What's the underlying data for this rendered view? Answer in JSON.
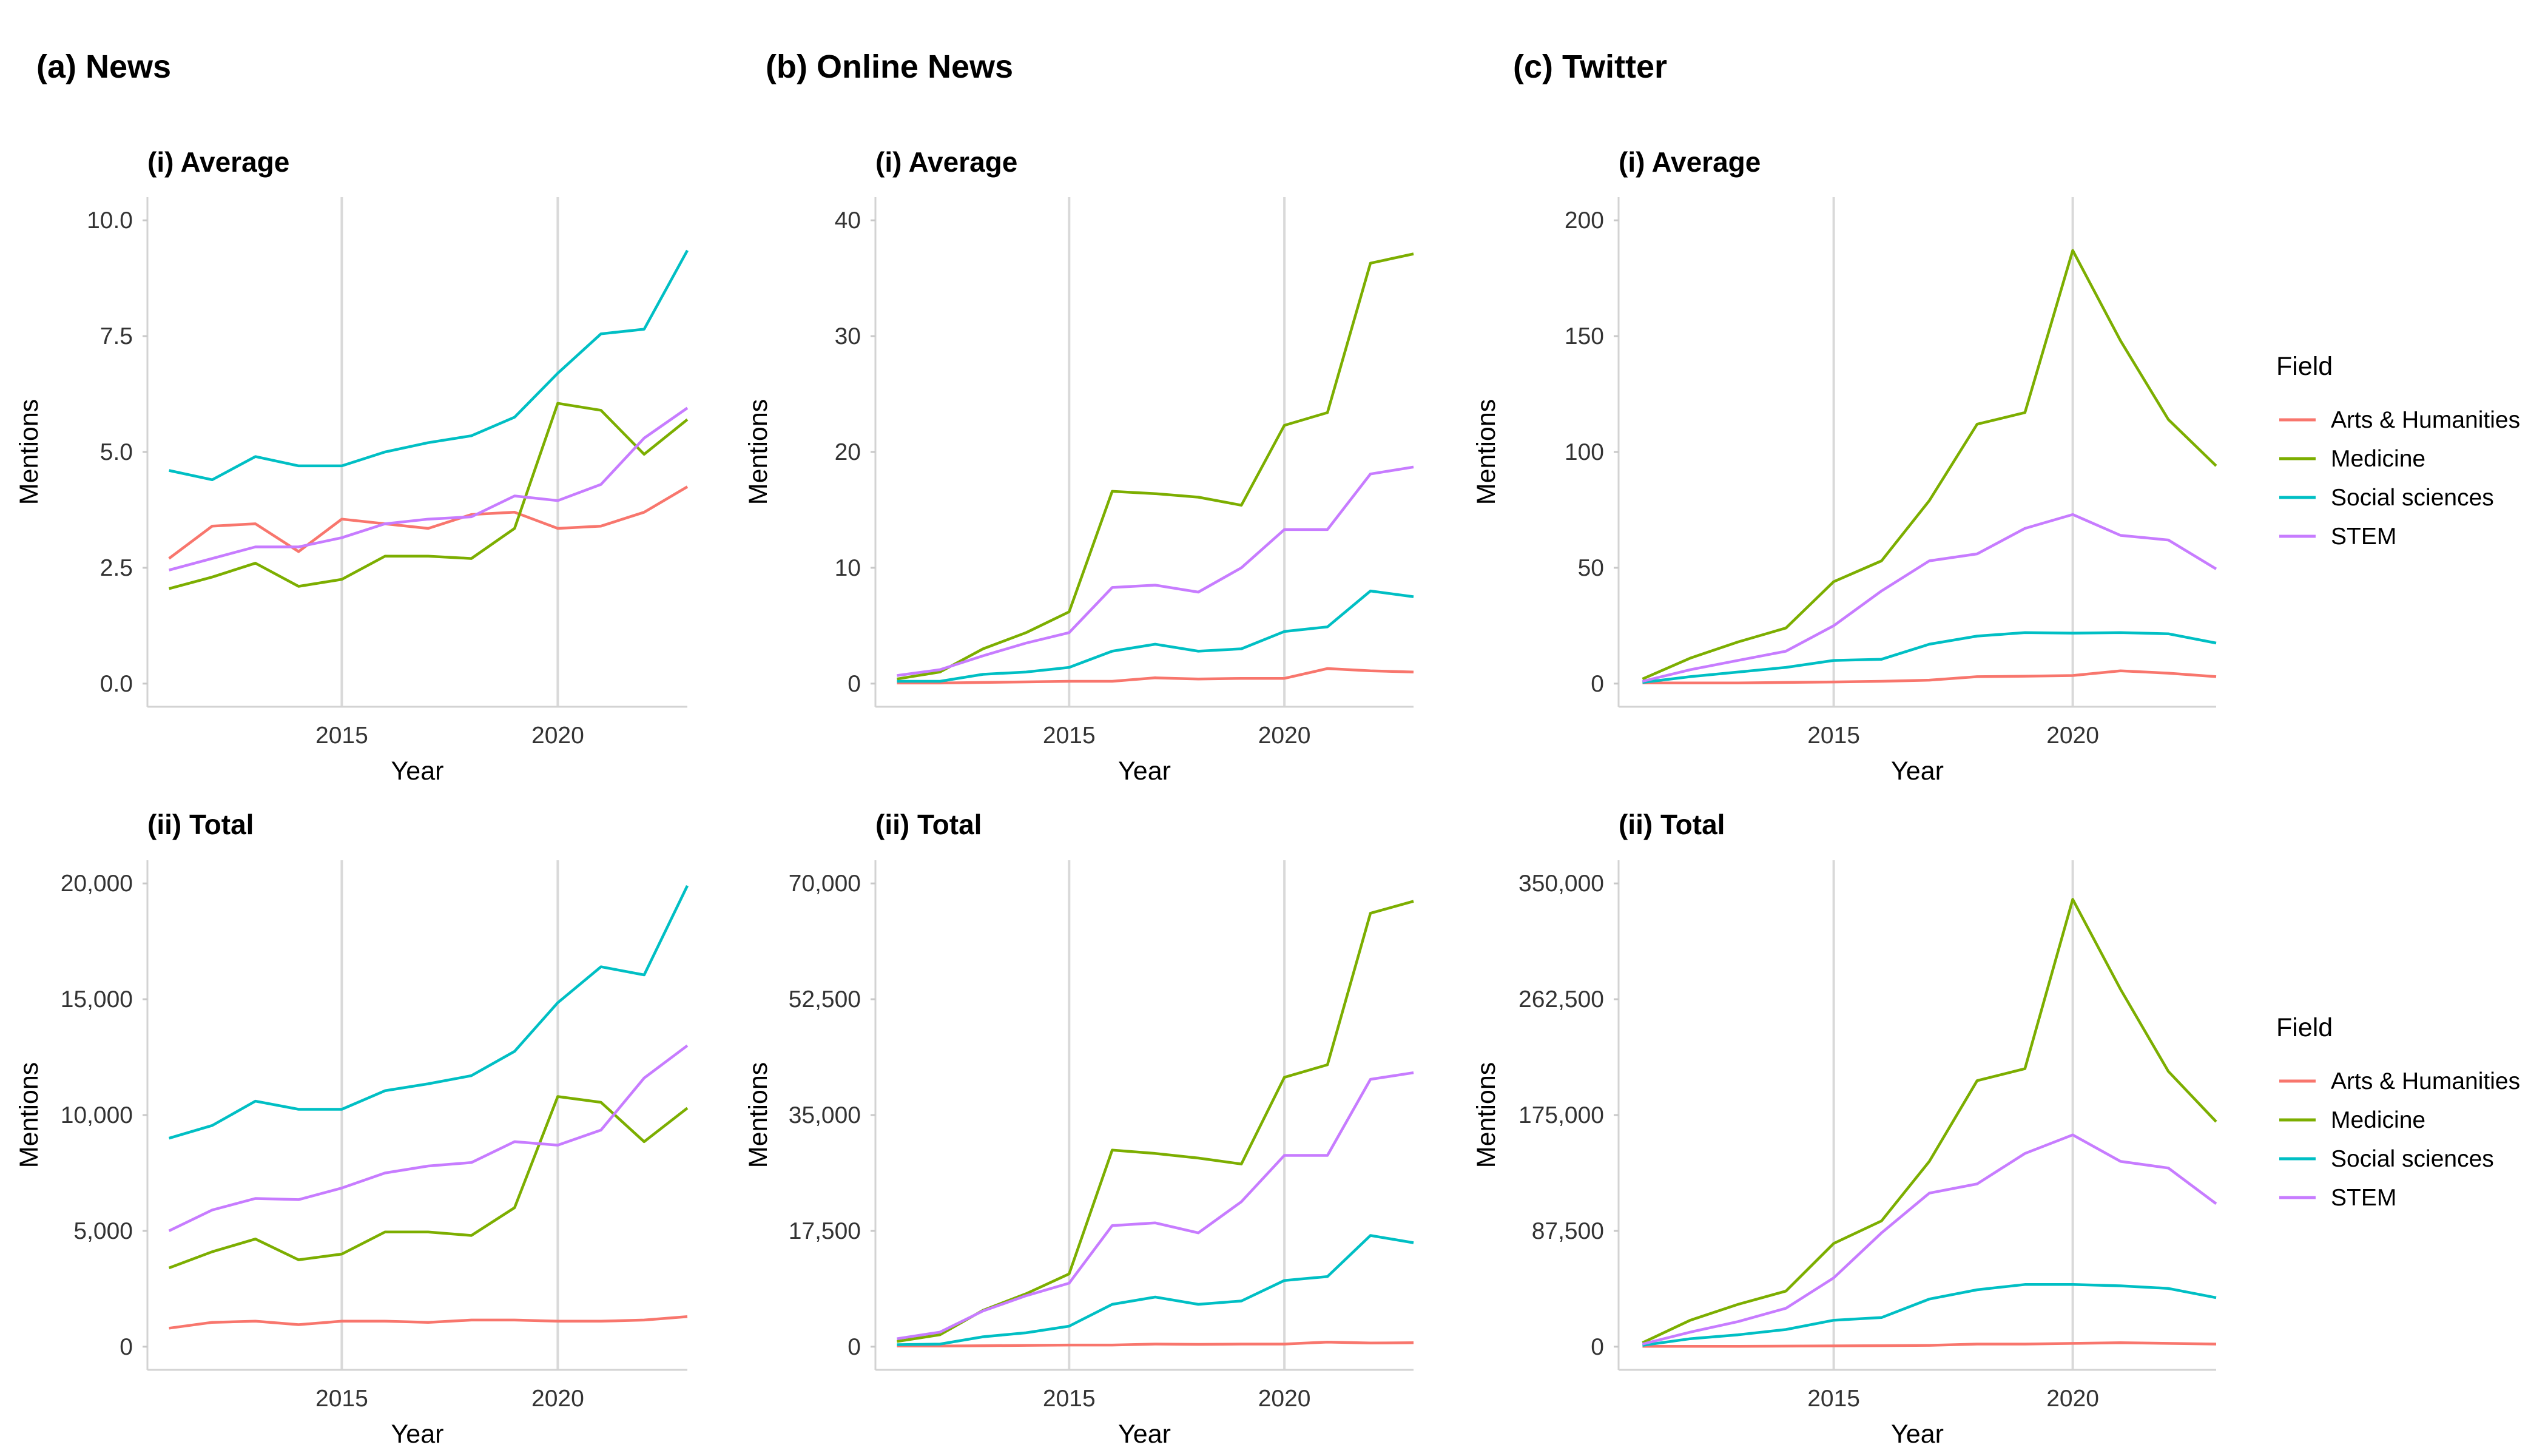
{
  "columns": [
    {
      "title": "(a) News"
    },
    {
      "title": "(b) Online News"
    },
    {
      "title": "(c) Twitter"
    }
  ],
  "legend": {
    "title": "Field",
    "entries": [
      {
        "name": "Arts & Humanities",
        "color": "#F8766D"
      },
      {
        "name": "Medicine",
        "color": "#7CAE00"
      },
      {
        "name": "Social sciences",
        "color": "#00BFC4"
      },
      {
        "name": "STEM",
        "color": "#C77CFF"
      }
    ]
  },
  "chart_data": [
    {
      "type": "line",
      "column": "(a) News",
      "title": "(i) Average",
      "xlabel": "Year",
      "ylabel": "Mentions",
      "x": [
        2011,
        2012,
        2013,
        2014,
        2015,
        2016,
        2017,
        2018,
        2019,
        2020,
        2021,
        2022,
        2023
      ],
      "xticks": [
        2015,
        2020
      ],
      "xlim": [
        2010.5,
        2023
      ],
      "ylim": [
        -0.5,
        10.5
      ],
      "yticks": [
        0,
        2.5,
        5,
        7.5,
        10
      ],
      "ytick_labels": [
        "0.0",
        "2.5",
        "5.0",
        "7.5",
        "10.0"
      ],
      "grid": "vertical major",
      "series": [
        {
          "name": "Arts & Humanities",
          "values": [
            2.7,
            3.4,
            3.45,
            2.85,
            3.55,
            3.45,
            3.35,
            3.65,
            3.7,
            3.35,
            3.4,
            3.7,
            4.25
          ]
        },
        {
          "name": "Medicine",
          "values": [
            2.05,
            2.3,
            2.6,
            2.1,
            2.25,
            2.75,
            2.75,
            2.7,
            3.35,
            6.05,
            5.9,
            4.95,
            5.7
          ]
        },
        {
          "name": "Social sciences",
          "values": [
            4.6,
            4.4,
            4.9,
            4.7,
            4.7,
            5.0,
            5.2,
            5.35,
            5.75,
            6.7,
            7.55,
            7.65,
            9.35
          ]
        },
        {
          "name": "STEM",
          "values": [
            2.45,
            2.7,
            2.95,
            2.95,
            3.15,
            3.45,
            3.55,
            3.6,
            4.05,
            3.95,
            4.3,
            5.3,
            5.95
          ]
        }
      ]
    },
    {
      "type": "line",
      "column": "(a) News",
      "title": "(ii) Total",
      "xlabel": "Year",
      "ylabel": "Mentions",
      "x": [
        2011,
        2012,
        2013,
        2014,
        2015,
        2016,
        2017,
        2018,
        2019,
        2020,
        2021,
        2022,
        2023
      ],
      "xticks": [
        2015,
        2020
      ],
      "xlim": [
        2010.5,
        2023
      ],
      "ylim": [
        -1000,
        21000
      ],
      "yticks": [
        0,
        5000,
        10000,
        15000,
        20000
      ],
      "ytick_labels": [
        "0",
        "5,000",
        "10,000",
        "15,000",
        "20,000"
      ],
      "grid": "vertical major",
      "series": [
        {
          "name": "Arts & Humanities",
          "values": [
            800,
            1050,
            1100,
            950,
            1100,
            1100,
            1050,
            1150,
            1150,
            1100,
            1100,
            1150,
            1300
          ]
        },
        {
          "name": "Medicine",
          "values": [
            3400,
            4100,
            4650,
            3750,
            4000,
            4950,
            4950,
            4800,
            6000,
            10800,
            10550,
            8850,
            10300
          ]
        },
        {
          "name": "Social sciences",
          "values": [
            9000,
            9550,
            10600,
            10250,
            10250,
            11050,
            11350,
            11700,
            12750,
            14850,
            16400,
            16050,
            19900
          ]
        },
        {
          "name": "STEM",
          "values": [
            5000,
            5900,
            6400,
            6350,
            6850,
            7500,
            7800,
            7950,
            8850,
            8700,
            9350,
            11600,
            13000
          ]
        }
      ]
    },
    {
      "type": "line",
      "column": "(b) Online News",
      "title": "(i) Average",
      "xlabel": "Year",
      "ylabel": "Mentions",
      "x": [
        2011,
        2012,
        2013,
        2014,
        2015,
        2016,
        2017,
        2018,
        2019,
        2020,
        2021,
        2022,
        2023
      ],
      "xticks": [
        2015,
        2020
      ],
      "xlim": [
        2010.5,
        2023
      ],
      "ylim": [
        -2,
        42
      ],
      "yticks": [
        0,
        10,
        20,
        30,
        40
      ],
      "ytick_labels": [
        "0",
        "10",
        "20",
        "30",
        "40"
      ],
      "grid": "vertical major",
      "series": [
        {
          "name": "Arts & Humanities",
          "values": [
            0.05,
            0.05,
            0.1,
            0.15,
            0.2,
            0.2,
            0.5,
            0.4,
            0.45,
            0.45,
            1.3,
            1.1,
            1.0
          ]
        },
        {
          "name": "Medicine",
          "values": [
            0.4,
            1.0,
            3.0,
            4.4,
            6.2,
            16.6,
            16.4,
            16.1,
            15.4,
            22.3,
            23.4,
            36.3,
            37.1
          ]
        },
        {
          "name": "Social sciences",
          "values": [
            0.2,
            0.2,
            0.8,
            1.0,
            1.4,
            2.8,
            3.4,
            2.8,
            3.0,
            4.5,
            4.9,
            8.0,
            7.5
          ]
        },
        {
          "name": "STEM",
          "values": [
            0.7,
            1.2,
            2.4,
            3.5,
            4.4,
            8.3,
            8.5,
            7.9,
            10.0,
            13.3,
            13.3,
            18.1,
            18.7
          ]
        }
      ]
    },
    {
      "type": "line",
      "column": "(b) Online News",
      "title": "(ii) Total",
      "xlabel": "Year",
      "ylabel": "Mentions",
      "x": [
        2011,
        2012,
        2013,
        2014,
        2015,
        2016,
        2017,
        2018,
        2019,
        2020,
        2021,
        2022,
        2023
      ],
      "xticks": [
        2015,
        2020
      ],
      "xlim": [
        2010.5,
        2023
      ],
      "ylim": [
        -3500,
        73500
      ],
      "yticks": [
        0,
        17500,
        35000,
        52500,
        70000
      ],
      "ytick_labels": [
        "0",
        "17,500",
        "35,000",
        "52,500",
        "70,000"
      ],
      "grid": "vertical major",
      "series": [
        {
          "name": "Arts & Humanities",
          "values": [
            100,
            100,
            150,
            200,
            250,
            250,
            400,
            350,
            400,
            400,
            700,
            550,
            600
          ]
        },
        {
          "name": "Medicine",
          "values": [
            800,
            1800,
            5500,
            8000,
            11000,
            29700,
            29200,
            28500,
            27600,
            40700,
            42600,
            65500,
            67300
          ]
        },
        {
          "name": "Social sciences",
          "values": [
            300,
            400,
            1500,
            2100,
            3100,
            6400,
            7500,
            6400,
            6900,
            10000,
            10600,
            16800,
            15700
          ]
        },
        {
          "name": "STEM",
          "values": [
            1200,
            2200,
            5400,
            7700,
            9600,
            18300,
            18700,
            17200,
            21900,
            28900,
            28900,
            40400,
            41400
          ]
        }
      ]
    },
    {
      "type": "line",
      "column": "(c) Twitter",
      "title": "(i) Average",
      "xlabel": "Year",
      "ylabel": "Mentions",
      "x": [
        2011,
        2012,
        2013,
        2014,
        2015,
        2016,
        2017,
        2018,
        2019,
        2020,
        2021,
        2022,
        2023
      ],
      "xticks": [
        2015,
        2020
      ],
      "xlim": [
        2010.5,
        2023
      ],
      "ylim": [
        -10,
        210
      ],
      "yticks": [
        0,
        50,
        100,
        150,
        200
      ],
      "ytick_labels": [
        "0",
        "50",
        "100",
        "150",
        "200"
      ],
      "grid": "vertical major",
      "series": [
        {
          "name": "Arts & Humanities",
          "values": [
            0.3,
            0.3,
            0.3,
            0.5,
            0.7,
            1.0,
            1.5,
            3.0,
            3.2,
            3.5,
            5.5,
            4.5,
            3.0
          ]
        },
        {
          "name": "Medicine",
          "values": [
            2,
            11,
            18,
            24,
            44,
            53,
            79,
            112,
            117,
            187,
            148,
            114,
            94
          ]
        },
        {
          "name": "Social sciences",
          "values": [
            0.5,
            3.0,
            5.0,
            7.0,
            10,
            10.5,
            17,
            20.5,
            22,
            21.8,
            22,
            21.5,
            17.5
          ]
        },
        {
          "name": "STEM",
          "values": [
            1,
            6,
            10,
            14,
            25,
            40,
            53,
            56,
            67,
            73,
            64,
            62,
            49.5
          ]
        }
      ]
    },
    {
      "type": "line",
      "column": "(c) Twitter",
      "title": "(ii) Total",
      "xlabel": "Year",
      "ylabel": "Mentions",
      "x": [
        2011,
        2012,
        2013,
        2014,
        2015,
        2016,
        2017,
        2018,
        2019,
        2020,
        2021,
        2022,
        2023
      ],
      "xticks": [
        2015,
        2020
      ],
      "xlim": [
        2010.5,
        2023
      ],
      "ylim": [
        -17500,
        367500
      ],
      "yticks": [
        0,
        87500,
        175000,
        262500,
        350000
      ],
      "ytick_labels": [
        "0",
        "87,500",
        "175,000",
        "262,500",
        "350,000"
      ],
      "grid": "vertical major",
      "series": [
        {
          "name": "Arts & Humanities",
          "values": [
            300,
            300,
            300,
            400,
            600,
            800,
            1000,
            2000,
            2000,
            2500,
            3000,
            2500,
            2000
          ]
        },
        {
          "name": "Medicine",
          "values": [
            3000,
            20000,
            32000,
            42000,
            78000,
            95000,
            140000,
            201000,
            210000,
            338000,
            270000,
            208000,
            170000
          ]
        },
        {
          "name": "Social sciences",
          "values": [
            1000,
            6000,
            9000,
            13000,
            20000,
            22000,
            36000,
            43000,
            47000,
            47000,
            46000,
            44000,
            37000
          ]
        },
        {
          "name": "STEM",
          "values": [
            2000,
            11000,
            19000,
            29000,
            52000,
            86000,
            116000,
            123000,
            146000,
            160000,
            140000,
            135000,
            108000
          ]
        }
      ]
    }
  ]
}
